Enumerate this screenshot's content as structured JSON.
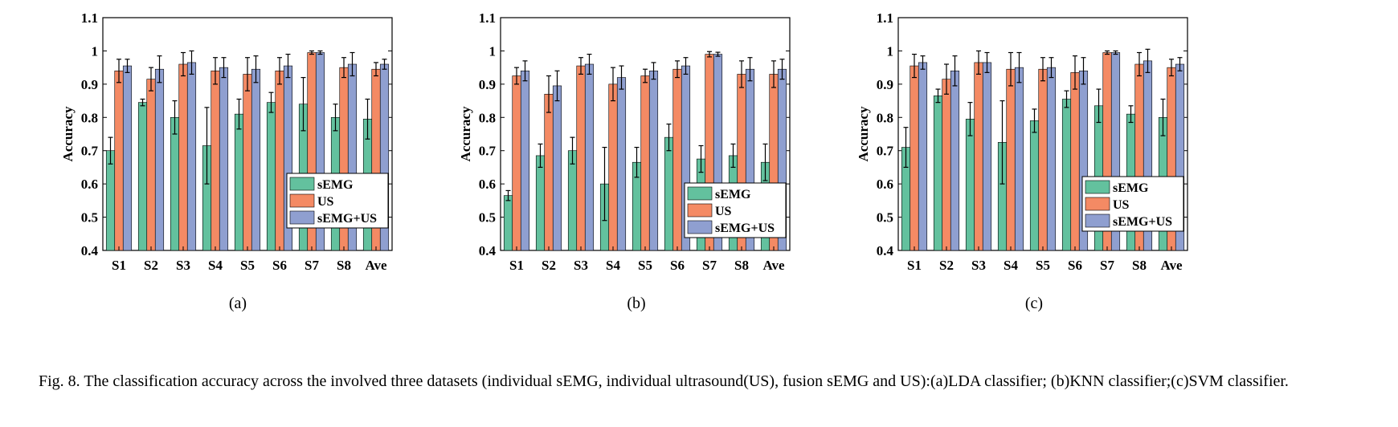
{
  "caption": "Fig. 8.  The classification accuracy across the involved three datasets (individual sEMG, individual ultrasound(US), fusion sEMG and US):(a)LDA classifier; (b)KNN classifier;(c)SVM classifier.",
  "colors": {
    "sEMG": "#63c19e",
    "US": "#f48a64",
    "sEMG+US": "#8f9fd0",
    "edge": "#000000"
  },
  "chart_data": [
    {
      "type": "bar",
      "panel_label": "(a)",
      "ylabel": "Accuracy",
      "ylim": [
        0.4,
        1.1
      ],
      "yticks": [
        "0.4",
        "0.5",
        "0.6",
        "0.7",
        "0.8",
        "0.9",
        "1",
        "1.1"
      ],
      "categories": [
        "S1",
        "S2",
        "S3",
        "S4",
        "S5",
        "S6",
        "S7",
        "S8",
        "Ave"
      ],
      "legend_position": "lower-right",
      "series": [
        {
          "name": "sEMG",
          "values": [
            0.7,
            0.845,
            0.8,
            0.715,
            0.81,
            0.845,
            0.84,
            0.8,
            0.795
          ],
          "errors": [
            0.04,
            0.01,
            0.05,
            0.115,
            0.045,
            0.03,
            0.08,
            0.04,
            0.06
          ]
        },
        {
          "name": "US",
          "values": [
            0.94,
            0.915,
            0.96,
            0.94,
            0.93,
            0.94,
            0.995,
            0.95,
            0.945
          ],
          "errors": [
            0.035,
            0.035,
            0.035,
            0.04,
            0.05,
            0.04,
            0.005,
            0.03,
            0.02
          ]
        },
        {
          "name": "sEMG+US",
          "values": [
            0.955,
            0.945,
            0.965,
            0.95,
            0.945,
            0.955,
            0.995,
            0.96,
            0.96
          ],
          "errors": [
            0.02,
            0.04,
            0.035,
            0.03,
            0.04,
            0.035,
            0.005,
            0.035,
            0.015
          ]
        }
      ]
    },
    {
      "type": "bar",
      "panel_label": "(b)",
      "ylabel": "Accuracy",
      "ylim": [
        0.4,
        1.1
      ],
      "yticks": [
        "0.4",
        "0.5",
        "0.6",
        "0.7",
        "0.8",
        "0.9",
        "1",
        "1.1"
      ],
      "categories": [
        "S1",
        "S2",
        "S3",
        "S4",
        "S5",
        "S6",
        "S7",
        "S8",
        "Ave"
      ],
      "legend_position": "lower-right",
      "series": [
        {
          "name": "sEMG",
          "values": [
            0.565,
            0.685,
            0.7,
            0.6,
            0.665,
            0.74,
            0.675,
            0.685,
            0.665
          ],
          "errors": [
            0.015,
            0.035,
            0.04,
            0.11,
            0.045,
            0.04,
            0.04,
            0.035,
            0.055
          ]
        },
        {
          "name": "US",
          "values": [
            0.925,
            0.87,
            0.955,
            0.9,
            0.925,
            0.945,
            0.99,
            0.93,
            0.93
          ],
          "errors": [
            0.025,
            0.055,
            0.025,
            0.05,
            0.02,
            0.025,
            0.008,
            0.04,
            0.04
          ]
        },
        {
          "name": "sEMG+US",
          "values": [
            0.94,
            0.895,
            0.96,
            0.92,
            0.94,
            0.955,
            0.99,
            0.945,
            0.945
          ],
          "errors": [
            0.03,
            0.045,
            0.03,
            0.035,
            0.025,
            0.025,
            0.006,
            0.035,
            0.03
          ]
        }
      ]
    },
    {
      "type": "bar",
      "panel_label": "(c)",
      "ylabel": "Accuracy",
      "ylim": [
        0.4,
        1.1
      ],
      "yticks": [
        "0.4",
        "0.5",
        "0.6",
        "0.7",
        "0.8",
        "0.9",
        "1",
        "1.1"
      ],
      "categories": [
        "S1",
        "S2",
        "S3",
        "S4",
        "S5",
        "S6",
        "S7",
        "S8",
        "Ave"
      ],
      "legend_position": "lower-right",
      "series": [
        {
          "name": "sEMG",
          "values": [
            0.71,
            0.865,
            0.795,
            0.725,
            0.79,
            0.855,
            0.835,
            0.81,
            0.8
          ],
          "errors": [
            0.06,
            0.02,
            0.05,
            0.125,
            0.035,
            0.025,
            0.05,
            0.025,
            0.055
          ]
        },
        {
          "name": "US",
          "values": [
            0.955,
            0.915,
            0.965,
            0.945,
            0.945,
            0.935,
            0.995,
            0.96,
            0.95
          ],
          "errors": [
            0.035,
            0.045,
            0.035,
            0.05,
            0.035,
            0.05,
            0.005,
            0.035,
            0.025
          ]
        },
        {
          "name": "sEMG+US",
          "values": [
            0.965,
            0.94,
            0.965,
            0.95,
            0.95,
            0.94,
            0.995,
            0.97,
            0.96
          ],
          "errors": [
            0.02,
            0.045,
            0.03,
            0.045,
            0.03,
            0.04,
            0.005,
            0.035,
            0.02
          ]
        }
      ]
    }
  ]
}
